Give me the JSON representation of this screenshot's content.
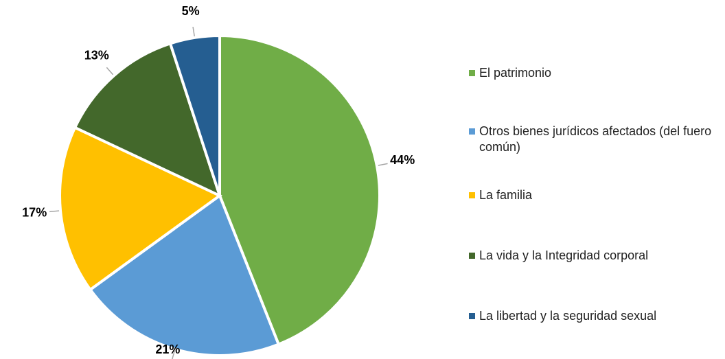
{
  "chart_data": {
    "type": "pie",
    "categories": [
      "El patrimonio",
      "Otros bienes jurídicos afectados (del fuero común)",
      "La familia",
      "La vida y la Integridad corporal",
      "La libertad y la seguridad sexual"
    ],
    "values": [
      44,
      21,
      17,
      13,
      5
    ],
    "value_labels": [
      "44%",
      "21%",
      "17%",
      "13%",
      "5%"
    ],
    "colors": [
      "#70ad47",
      "#5b9bd5",
      "#ffc000",
      "#43682b",
      "#255e91"
    ],
    "legend": "right"
  }
}
